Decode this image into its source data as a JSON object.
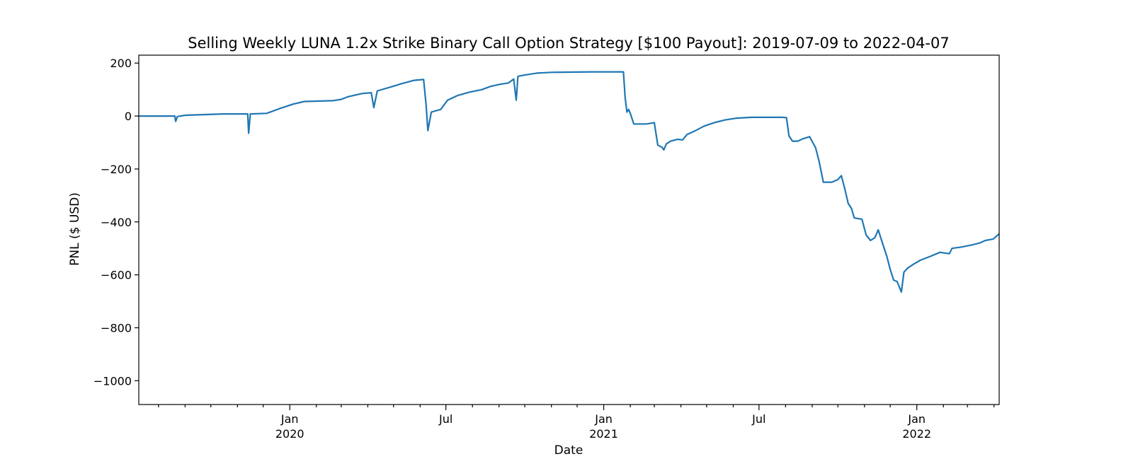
{
  "chart_data": {
    "type": "line",
    "title": "Selling Weekly LUNA 1.2x Strike Binary Call Option Strategy [$100 Payout]: 2019-07-09 to 2022-04-07",
    "xlabel": "Date",
    "ylabel": "PNL ($ USD)",
    "xlim": [
      "2019-07-09",
      "2022-04-07"
    ],
    "ylim": [
      -1090,
      230
    ],
    "grid": false,
    "legend": "none",
    "line_color": "#1f77b4",
    "y_ticks": [
      {
        "value": 200,
        "label": "200"
      },
      {
        "value": 0,
        "label": "0"
      },
      {
        "value": -200,
        "label": "−200"
      },
      {
        "value": -400,
        "label": "−400"
      },
      {
        "value": -600,
        "label": "−600"
      },
      {
        "value": -800,
        "label": "−800"
      },
      {
        "value": -1000,
        "label": "−1000"
      }
    ],
    "x_major_ticks": [
      {
        "date": "2020-01-01",
        "label": "Jan",
        "sublabel": "2020"
      },
      {
        "date": "2020-07-01",
        "label": "Jul",
        "sublabel": ""
      },
      {
        "date": "2021-01-01",
        "label": "Jan",
        "sublabel": "2021"
      },
      {
        "date": "2021-07-01",
        "label": "Jul",
        "sublabel": ""
      },
      {
        "date": "2022-01-01",
        "label": "Jan",
        "sublabel": "2022"
      }
    ],
    "x_minor_ticks": [
      "2019-08-01",
      "2019-09-01",
      "2019-10-01",
      "2019-11-01",
      "2019-12-01",
      "2020-02-01",
      "2020-03-01",
      "2020-04-01",
      "2020-05-01",
      "2020-06-01",
      "2020-08-01",
      "2020-09-01",
      "2020-10-01",
      "2020-11-01",
      "2020-12-01",
      "2021-02-01",
      "2021-03-01",
      "2021-04-01",
      "2021-05-01",
      "2021-06-01",
      "2021-08-01",
      "2021-09-01",
      "2021-10-01",
      "2021-11-01",
      "2021-12-01",
      "2022-02-01",
      "2022-03-01",
      "2022-04-01"
    ],
    "series": [
      {
        "points": [
          [
            "2019-07-09",
            0
          ],
          [
            "2019-08-20",
            0
          ],
          [
            "2019-08-21",
            -20
          ],
          [
            "2019-08-23",
            -2
          ],
          [
            "2019-09-01",
            3
          ],
          [
            "2019-10-15",
            8
          ],
          [
            "2019-11-13",
            8
          ],
          [
            "2019-11-14",
            -65
          ],
          [
            "2019-11-16",
            8
          ],
          [
            "2019-12-05",
            10
          ],
          [
            "2019-12-20",
            28
          ],
          [
            "2020-01-05",
            45
          ],
          [
            "2020-01-18",
            55
          ],
          [
            "2020-02-20",
            58
          ],
          [
            "2020-03-01",
            63
          ],
          [
            "2020-03-08",
            72
          ],
          [
            "2020-03-25",
            85
          ],
          [
            "2020-04-05",
            88
          ],
          [
            "2020-04-08",
            32
          ],
          [
            "2020-04-12",
            95
          ],
          [
            "2020-04-28",
            110
          ],
          [
            "2020-05-10",
            122
          ],
          [
            "2020-05-25",
            135
          ],
          [
            "2020-06-05",
            138
          ],
          [
            "2020-06-08",
            40
          ],
          [
            "2020-06-10",
            -55
          ],
          [
            "2020-06-14",
            15
          ],
          [
            "2020-06-25",
            25
          ],
          [
            "2020-07-03",
            60
          ],
          [
            "2020-07-15",
            78
          ],
          [
            "2020-07-28",
            90
          ],
          [
            "2020-08-12",
            100
          ],
          [
            "2020-08-22",
            112
          ],
          [
            "2020-09-02",
            120
          ],
          [
            "2020-09-12",
            125
          ],
          [
            "2020-09-18",
            140
          ],
          [
            "2020-09-21",
            60
          ],
          [
            "2020-09-23",
            150
          ],
          [
            "2020-10-01",
            155
          ],
          [
            "2020-10-15",
            162
          ],
          [
            "2020-11-01",
            165
          ],
          [
            "2020-11-20",
            166
          ],
          [
            "2020-12-20",
            167
          ],
          [
            "2021-01-24",
            167
          ],
          [
            "2021-01-26",
            70
          ],
          [
            "2021-01-28",
            15
          ],
          [
            "2021-01-30",
            25
          ],
          [
            "2021-02-01",
            10
          ],
          [
            "2021-02-05",
            -30
          ],
          [
            "2021-02-20",
            -30
          ],
          [
            "2021-03-01",
            -25
          ],
          [
            "2021-03-05",
            -110
          ],
          [
            "2021-03-10",
            -118
          ],
          [
            "2021-03-12",
            -128
          ],
          [
            "2021-03-15",
            -105
          ],
          [
            "2021-03-20",
            -95
          ],
          [
            "2021-03-28",
            -88
          ],
          [
            "2021-04-03",
            -90
          ],
          [
            "2021-04-08",
            -70
          ],
          [
            "2021-04-18",
            -55
          ],
          [
            "2021-04-28",
            -38
          ],
          [
            "2021-05-10",
            -25
          ],
          [
            "2021-05-22",
            -15
          ],
          [
            "2021-06-05",
            -8
          ],
          [
            "2021-06-22",
            -5
          ],
          [
            "2021-07-15",
            -5
          ],
          [
            "2021-07-28",
            -5
          ],
          [
            "2021-08-02",
            -6
          ],
          [
            "2021-08-05",
            -75
          ],
          [
            "2021-08-09",
            -95
          ],
          [
            "2021-08-15",
            -95
          ],
          [
            "2021-08-22",
            -85
          ],
          [
            "2021-08-29",
            -78
          ],
          [
            "2021-09-05",
            -120
          ],
          [
            "2021-09-09",
            -170
          ],
          [
            "2021-09-14",
            -250
          ],
          [
            "2021-09-24",
            -250
          ],
          [
            "2021-10-01",
            -240
          ],
          [
            "2021-10-05",
            -225
          ],
          [
            "2021-10-09",
            -275
          ],
          [
            "2021-10-13",
            -330
          ],
          [
            "2021-10-17",
            -350
          ],
          [
            "2021-10-20",
            -385
          ],
          [
            "2021-10-29",
            -390
          ],
          [
            "2021-11-03",
            -450
          ],
          [
            "2021-11-08",
            -470
          ],
          [
            "2021-11-13",
            -460
          ],
          [
            "2021-11-17",
            -430
          ],
          [
            "2021-11-21",
            -470
          ],
          [
            "2021-11-27",
            -530
          ],
          [
            "2021-12-01",
            -580
          ],
          [
            "2021-12-05",
            -620
          ],
          [
            "2021-12-09",
            -625
          ],
          [
            "2021-12-14",
            -665
          ],
          [
            "2021-12-17",
            -590
          ],
          [
            "2021-12-21",
            -575
          ],
          [
            "2021-12-28",
            -560
          ],
          [
            "2022-01-05",
            -545
          ],
          [
            "2022-01-17",
            -530
          ],
          [
            "2022-01-28",
            -515
          ],
          [
            "2022-02-08",
            -520
          ],
          [
            "2022-02-11",
            -500
          ],
          [
            "2022-02-22",
            -495
          ],
          [
            "2022-03-05",
            -488
          ],
          [
            "2022-03-15",
            -480
          ],
          [
            "2022-03-22",
            -470
          ],
          [
            "2022-03-31",
            -465
          ],
          [
            "2022-04-07",
            -445
          ]
        ]
      }
    ]
  }
}
